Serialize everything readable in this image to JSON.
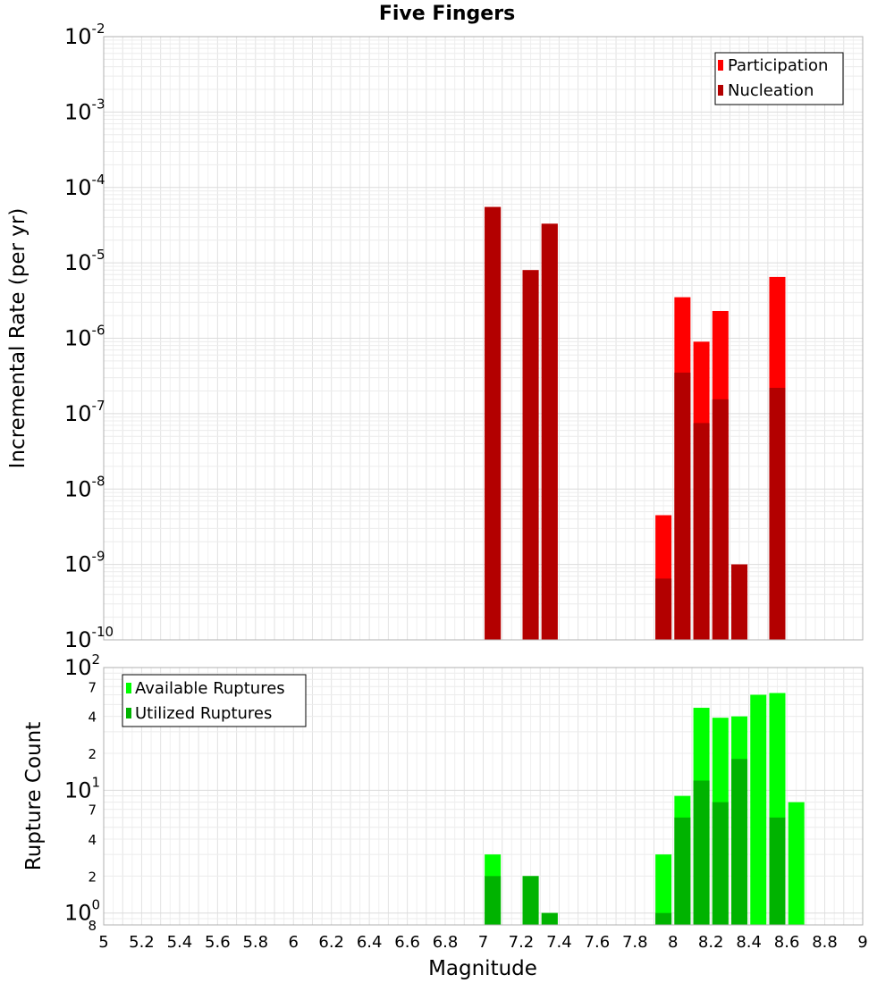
{
  "chart_data": [
    {
      "type": "bar",
      "title": "Five Fingers",
      "ylabel": "Incremental Rate (per yr)",
      "yscale": "log",
      "ylim": [
        1e-10,
        0.01
      ],
      "xlim": [
        5,
        9
      ],
      "grid": true,
      "legend_position": "top-right",
      "y_ticks": [
        {
          "base": "10",
          "exp": "-10"
        },
        {
          "base": "10",
          "exp": "-9"
        },
        {
          "base": "10",
          "exp": "-8"
        },
        {
          "base": "10",
          "exp": "-7"
        },
        {
          "base": "10",
          "exp": "-6"
        },
        {
          "base": "10",
          "exp": "-5"
        },
        {
          "base": "10",
          "exp": "-4"
        },
        {
          "base": "10",
          "exp": "-3"
        },
        {
          "base": "10",
          "exp": "-2"
        }
      ],
      "series": [
        {
          "name": "Participation",
          "color": "#ff0000",
          "x": [
            7.05,
            7.25,
            7.35,
            7.95,
            8.05,
            8.15,
            8.25,
            8.35,
            8.55
          ],
          "values": [
            5.5e-05,
            8e-06,
            3.3e-05,
            4.5e-09,
            3.5e-06,
            9e-07,
            2.3e-06,
            1e-09,
            6.5e-06
          ]
        },
        {
          "name": "Nucleation",
          "color": "#b30000",
          "x": [
            7.05,
            7.25,
            7.35,
            7.95,
            8.05,
            8.15,
            8.25,
            8.35,
            8.55
          ],
          "values": [
            5.5e-05,
            8e-06,
            3.3e-05,
            6.5e-10,
            3.5e-07,
            7.5e-08,
            1.55e-07,
            1e-09,
            2.2e-07
          ]
        }
      ]
    },
    {
      "type": "bar",
      "xlabel": "Magnitude",
      "ylabel": "Rupture Count",
      "yscale": "log",
      "ylim": [
        0.8,
        100
      ],
      "xlim": [
        5,
        9
      ],
      "grid": true,
      "legend_position": "top-left",
      "x_ticks": [
        "5",
        "5.2",
        "5.4",
        "5.6",
        "5.8",
        "6",
        "6.2",
        "6.4",
        "6.6",
        "6.8",
        "7",
        "7.2",
        "7.4",
        "7.6",
        "7.8",
        "8",
        "8.2",
        "8.4",
        "8.6",
        "8.8",
        "9"
      ],
      "y_major_ticks": [
        {
          "base": "10",
          "exp": "0"
        },
        {
          "base": "10",
          "exp": "1"
        },
        {
          "base": "10",
          "exp": "2"
        }
      ],
      "y_minor_ticks": [
        "8",
        "2",
        "4",
        "7",
        "2",
        "4",
        "7"
      ],
      "series": [
        {
          "name": "Available Ruptures",
          "color": "#00ff00",
          "x": [
            7.05,
            7.25,
            7.35,
            7.95,
            8.05,
            8.15,
            8.25,
            8.35,
            8.45,
            8.55,
            8.65
          ],
          "values": [
            3,
            2,
            1,
            3,
            9,
            47,
            39,
            40,
            60,
            62,
            8
          ]
        },
        {
          "name": "Utilized Ruptures",
          "color": "#00b300",
          "x": [
            7.05,
            7.25,
            7.35,
            7.95,
            8.05,
            8.15,
            8.25,
            8.35,
            8.45,
            8.55,
            8.65
          ],
          "values": [
            2,
            2,
            1,
            1,
            6,
            12,
            8,
            18,
            0,
            6,
            0
          ]
        }
      ]
    }
  ]
}
